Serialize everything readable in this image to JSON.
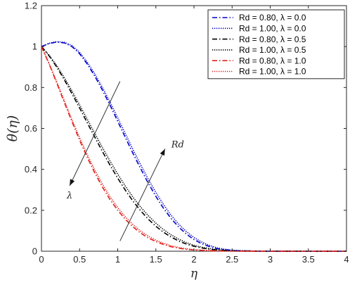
{
  "chart_data": {
    "type": "line",
    "xlabel": "η",
    "ylabel": "θ(η)",
    "xlim": [
      0,
      4
    ],
    "ylim": [
      0,
      1.2
    ],
    "x_ticks": [
      "0",
      "0.5",
      "1",
      "1.5",
      "2",
      "2.5",
      "3",
      "3.5",
      "4"
    ],
    "y_ticks": [
      "0",
      "0.2",
      "0.4",
      "0.6",
      "0.8",
      "1",
      "1.2"
    ],
    "grid": false,
    "legend_position": "top-right",
    "series": [
      {
        "name": "Rd   = 0.80, λ = 0.0",
        "rd": "0.80",
        "lambda": "0.0",
        "color": "#0000c8",
        "dash": "dashdot",
        "x": [
          0,
          0.1,
          0.2,
          0.3,
          0.4,
          0.5,
          0.6,
          0.7,
          0.8,
          0.9,
          1.0,
          1.1,
          1.2,
          1.3,
          1.4,
          1.5,
          1.6,
          1.7,
          1.8,
          1.9,
          2.0,
          2.1,
          2.2,
          2.3,
          2.4,
          2.5,
          2.6,
          2.8,
          3.0,
          3.5,
          4.0
        ],
        "y": [
          1.0,
          1.015,
          1.022,
          1.018,
          1.0,
          0.965,
          0.915,
          0.855,
          0.787,
          0.713,
          0.635,
          0.556,
          0.478,
          0.404,
          0.333,
          0.268,
          0.21,
          0.16,
          0.118,
          0.084,
          0.057,
          0.037,
          0.023,
          0.013,
          0.007,
          0.004,
          0.002,
          0.0005,
          0.0001,
          0,
          0
        ]
      },
      {
        "name": "Rd   = 1.00, λ = 0.0",
        "rd": "1.00",
        "lambda": "0.0",
        "color": "#0000c8",
        "dash": "dotted",
        "x": [
          0,
          0.1,
          0.2,
          0.3,
          0.4,
          0.5,
          0.6,
          0.7,
          0.8,
          0.9,
          1.0,
          1.1,
          1.2,
          1.3,
          1.4,
          1.5,
          1.6,
          1.7,
          1.8,
          1.9,
          2.0,
          2.1,
          2.2,
          2.3,
          2.4,
          2.5,
          2.6,
          2.8,
          3.0,
          3.5,
          4.0
        ],
        "y": [
          1.0,
          1.016,
          1.024,
          1.021,
          1.005,
          0.972,
          0.924,
          0.866,
          0.8,
          0.728,
          0.652,
          0.574,
          0.497,
          0.423,
          0.352,
          0.287,
          0.228,
          0.176,
          0.132,
          0.096,
          0.067,
          0.045,
          0.029,
          0.017,
          0.01,
          0.005,
          0.003,
          0.001,
          0.0002,
          0,
          0
        ]
      },
      {
        "name": "Rd   = 0.80, λ = 0.5",
        "rd": "0.80",
        "lambda": "0.5",
        "color": "#000000",
        "dash": "dashdot",
        "x": [
          0,
          0.1,
          0.2,
          0.3,
          0.4,
          0.5,
          0.6,
          0.7,
          0.8,
          0.9,
          1.0,
          1.1,
          1.2,
          1.3,
          1.4,
          1.5,
          1.6,
          1.7,
          1.8,
          1.9,
          2.0,
          2.1,
          2.2,
          2.3,
          2.5,
          2.7,
          3.0,
          3.5,
          4.0
        ],
        "y": [
          1.0,
          0.955,
          0.9,
          0.838,
          0.77,
          0.7,
          0.628,
          0.557,
          0.487,
          0.42,
          0.357,
          0.298,
          0.245,
          0.198,
          0.157,
          0.122,
          0.093,
          0.069,
          0.05,
          0.035,
          0.024,
          0.016,
          0.01,
          0.006,
          0.002,
          0.0008,
          0.0002,
          0,
          0
        ]
      },
      {
        "name": "Rd   = 1.00, λ = 0.5",
        "rd": "1.00",
        "lambda": "0.5",
        "color": "#000000",
        "dash": "dotted",
        "x": [
          0,
          0.1,
          0.2,
          0.3,
          0.4,
          0.5,
          0.6,
          0.7,
          0.8,
          0.9,
          1.0,
          1.1,
          1.2,
          1.3,
          1.4,
          1.5,
          1.6,
          1.7,
          1.8,
          1.9,
          2.0,
          2.1,
          2.2,
          2.3,
          2.5,
          2.7,
          3.0,
          3.5,
          4.0
        ],
        "y": [
          1.0,
          0.958,
          0.907,
          0.848,
          0.783,
          0.715,
          0.645,
          0.575,
          0.506,
          0.44,
          0.377,
          0.318,
          0.264,
          0.216,
          0.174,
          0.137,
          0.106,
          0.08,
          0.059,
          0.042,
          0.029,
          0.02,
          0.013,
          0.008,
          0.003,
          0.001,
          0.0003,
          0,
          0
        ]
      },
      {
        "name": "Rd   = 0.80, λ = 1.0",
        "rd": "0.80",
        "lambda": "1.0",
        "color": "#e0201b",
        "dash": "dashdot",
        "x": [
          0,
          0.1,
          0.2,
          0.3,
          0.4,
          0.5,
          0.6,
          0.7,
          0.8,
          0.9,
          1.0,
          1.1,
          1.2,
          1.3,
          1.4,
          1.5,
          1.6,
          1.7,
          1.8,
          1.9,
          2.0,
          2.2,
          2.4,
          2.7,
          3.0,
          3.5,
          4.0
        ],
        "y": [
          1.0,
          0.915,
          0.822,
          0.727,
          0.633,
          0.543,
          0.459,
          0.382,
          0.313,
          0.252,
          0.2,
          0.156,
          0.119,
          0.089,
          0.065,
          0.047,
          0.033,
          0.022,
          0.015,
          0.009,
          0.006,
          0.002,
          0.0007,
          0.0001,
          0,
          0,
          0
        ]
      },
      {
        "name": "Rd   = 1.00, λ = 1.0",
        "rd": "1.00",
        "lambda": "1.0",
        "color": "#e0201b",
        "dash": "dotted",
        "x": [
          0,
          0.1,
          0.2,
          0.3,
          0.4,
          0.5,
          0.6,
          0.7,
          0.8,
          0.9,
          1.0,
          1.1,
          1.2,
          1.3,
          1.4,
          1.5,
          1.6,
          1.7,
          1.8,
          1.9,
          2.0,
          2.2,
          2.4,
          2.7,
          3.0,
          3.5,
          4.0
        ],
        "y": [
          1.0,
          0.918,
          0.828,
          0.735,
          0.643,
          0.555,
          0.472,
          0.396,
          0.327,
          0.266,
          0.213,
          0.168,
          0.13,
          0.099,
          0.074,
          0.054,
          0.039,
          0.027,
          0.018,
          0.012,
          0.008,
          0.003,
          0.001,
          0.0002,
          0,
          0,
          0
        ]
      }
    ],
    "annotations": [
      {
        "text": "λ",
        "arrow_from": [
          1.03,
          0.83
        ],
        "arrow_to": [
          0.37,
          0.32
        ]
      },
      {
        "text": "Rd",
        "arrow_from": [
          1.03,
          0.05
        ],
        "arrow_to": [
          1.62,
          0.5
        ]
      }
    ]
  }
}
